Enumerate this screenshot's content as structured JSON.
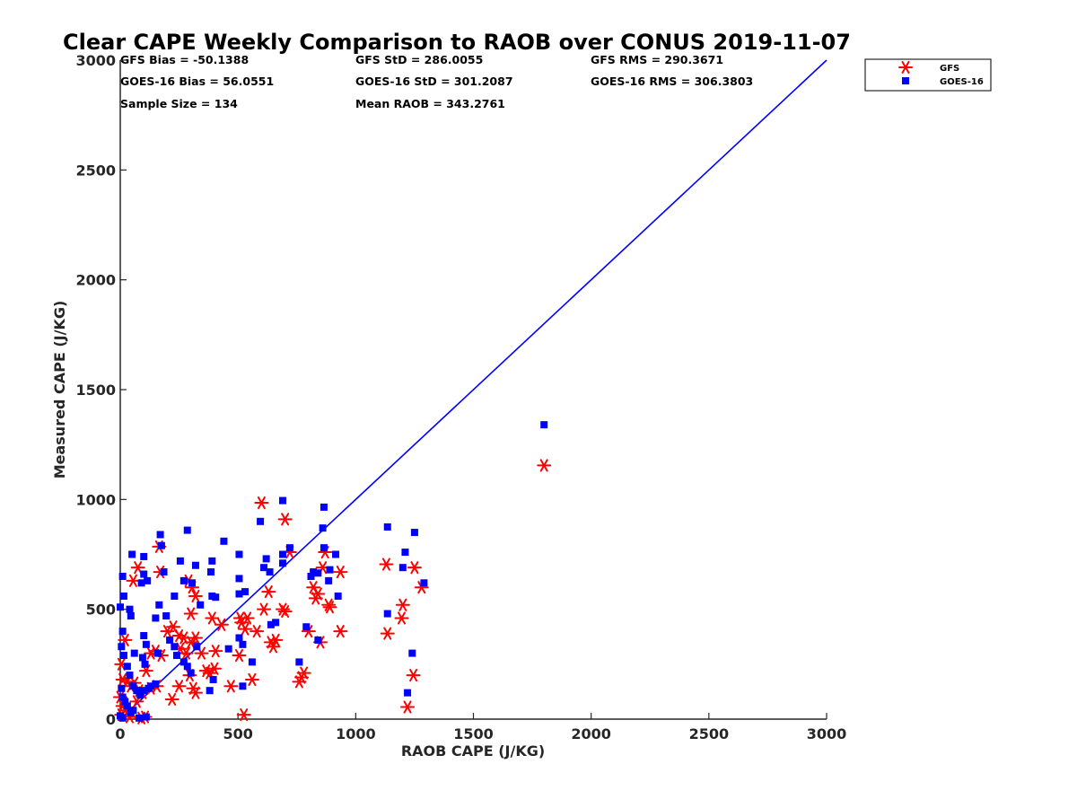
{
  "chart_data": {
    "type": "scatter",
    "title": "Clear CAPE Weekly Comparison to RAOB over CONUS 2019-11-07",
    "xlabel": "RAOB CAPE (J/KG)",
    "ylabel": "Measured CAPE (J/KG)",
    "xlim": [
      0,
      3000
    ],
    "ylim": [
      0,
      3000
    ],
    "xticks": [
      "0",
      "500",
      "1000",
      "1500",
      "2000",
      "2500",
      "3000"
    ],
    "yticks": [
      "0",
      "500",
      "1000",
      "1500",
      "2000",
      "2500",
      "3000"
    ],
    "grid": false,
    "legend_position": "top-right",
    "stats": [
      "GFS Bias = -50.1388",
      "GFS StD = 286.0055",
      "GFS RMS = 290.3671",
      "GOES-16 Bias = 56.0551",
      "GOES-16 StD = 301.2087",
      "GOES-16 RMS = 306.3803",
      "Sample Size = 134",
      "Mean RAOB = 343.2761"
    ],
    "reference_line": {
      "x": [
        0,
        3000
      ],
      "y": [
        0,
        3000
      ],
      "color": "#0000ff"
    },
    "series": [
      {
        "name": "GFS",
        "marker": "asterisk",
        "color": "#ff0000",
        "points": [
          [
            1800,
            1155
          ],
          [
            600,
            985
          ],
          [
            700,
            910
          ],
          [
            165,
            785
          ],
          [
            170,
            670
          ],
          [
            75,
            690
          ],
          [
            55,
            630
          ],
          [
            20,
            360
          ],
          [
            5,
            250
          ],
          [
            10,
            180
          ],
          [
            30,
            170
          ],
          [
            45,
            150
          ],
          [
            60,
            165
          ],
          [
            80,
            130
          ],
          [
            0,
            100
          ],
          [
            10,
            60
          ],
          [
            20,
            40
          ],
          [
            5,
            20
          ],
          [
            40,
            10
          ],
          [
            90,
            5
          ],
          [
            105,
            10
          ],
          [
            70,
            80
          ],
          [
            95,
            120
          ],
          [
            110,
            220
          ],
          [
            130,
            300
          ],
          [
            150,
            310
          ],
          [
            175,
            290
          ],
          [
            200,
            400
          ],
          [
            225,
            420
          ],
          [
            250,
            380
          ],
          [
            270,
            370
          ],
          [
            300,
            350
          ],
          [
            320,
            370
          ],
          [
            345,
            300
          ],
          [
            365,
            220
          ],
          [
            380,
            210
          ],
          [
            400,
            230
          ],
          [
            390,
            460
          ],
          [
            405,
            310
          ],
          [
            430,
            430
          ],
          [
            290,
            630
          ],
          [
            305,
            600
          ],
          [
            320,
            560
          ],
          [
            300,
            480
          ],
          [
            255,
            320
          ],
          [
            280,
            300
          ],
          [
            295,
            200
          ],
          [
            310,
            140
          ],
          [
            320,
            120
          ],
          [
            220,
            90
          ],
          [
            250,
            150
          ],
          [
            155,
            150
          ],
          [
            130,
            140
          ],
          [
            470,
            150
          ],
          [
            505,
            290
          ],
          [
            525,
            20
          ],
          [
            560,
            180
          ],
          [
            510,
            460
          ],
          [
            515,
            440
          ],
          [
            530,
            410
          ],
          [
            540,
            460
          ],
          [
            580,
            400
          ],
          [
            610,
            500
          ],
          [
            630,
            580
          ],
          [
            640,
            350
          ],
          [
            650,
            330
          ],
          [
            660,
            360
          ],
          [
            690,
            500
          ],
          [
            700,
            490
          ],
          [
            720,
            760
          ],
          [
            760,
            170
          ],
          [
            770,
            190
          ],
          [
            780,
            210
          ],
          [
            800,
            400
          ],
          [
            820,
            600
          ],
          [
            830,
            550
          ],
          [
            840,
            570
          ],
          [
            860,
            690
          ],
          [
            870,
            760
          ],
          [
            885,
            520
          ],
          [
            890,
            510
          ],
          [
            850,
            350
          ],
          [
            935,
            670
          ],
          [
            935,
            400
          ],
          [
            1130,
            705
          ],
          [
            1135,
            390
          ],
          [
            1195,
            460
          ],
          [
            1200,
            520
          ],
          [
            1250,
            690
          ],
          [
            1280,
            600
          ],
          [
            1245,
            200
          ],
          [
            1220,
            55
          ]
        ]
      },
      {
        "name": "GOES-16",
        "marker": "square",
        "color": "#0000ff",
        "points": [
          [
            1800,
            1340
          ],
          [
            690,
            995
          ],
          [
            865,
            965
          ],
          [
            595,
            900
          ],
          [
            860,
            870
          ],
          [
            1135,
            875
          ],
          [
            1250,
            850
          ],
          [
            170,
            840
          ],
          [
            285,
            860
          ],
          [
            440,
            810
          ],
          [
            175,
            790
          ],
          [
            50,
            750
          ],
          [
            100,
            740
          ],
          [
            505,
            750
          ],
          [
            690,
            750
          ],
          [
            720,
            780
          ],
          [
            865,
            780
          ],
          [
            915,
            750
          ],
          [
            1210,
            760
          ],
          [
            0,
            510
          ],
          [
            10,
            650
          ],
          [
            15,
            560
          ],
          [
            40,
            500
          ],
          [
            45,
            470
          ],
          [
            60,
            300
          ],
          [
            90,
            620
          ],
          [
            100,
            660
          ],
          [
            115,
            630
          ],
          [
            185,
            670
          ],
          [
            230,
            560
          ],
          [
            255,
            720
          ],
          [
            270,
            630
          ],
          [
            305,
            620
          ],
          [
            320,
            700
          ],
          [
            390,
            720
          ],
          [
            385,
            670
          ],
          [
            390,
            560
          ],
          [
            405,
            555
          ],
          [
            505,
            640
          ],
          [
            505,
            570
          ],
          [
            530,
            580
          ],
          [
            610,
            690
          ],
          [
            620,
            730
          ],
          [
            635,
            670
          ],
          [
            640,
            430
          ],
          [
            660,
            440
          ],
          [
            690,
            710
          ],
          [
            810,
            650
          ],
          [
            820,
            670
          ],
          [
            840,
            665
          ],
          [
            885,
            630
          ],
          [
            890,
            680
          ],
          [
            925,
            560
          ],
          [
            1200,
            690
          ],
          [
            1135,
            480
          ],
          [
            1290,
            620
          ],
          [
            10,
            400
          ],
          [
            5,
            330
          ],
          [
            15,
            290
          ],
          [
            30,
            240
          ],
          [
            40,
            200
          ],
          [
            55,
            150
          ],
          [
            70,
            130
          ],
          [
            85,
            110
          ],
          [
            100,
            380
          ],
          [
            110,
            340
          ],
          [
            95,
            280
          ],
          [
            105,
            250
          ],
          [
            130,
            150
          ],
          [
            150,
            460
          ],
          [
            165,
            520
          ],
          [
            195,
            470
          ],
          [
            210,
            360
          ],
          [
            230,
            330
          ],
          [
            240,
            290
          ],
          [
            270,
            260
          ],
          [
            285,
            240
          ],
          [
            300,
            210
          ],
          [
            325,
            330
          ],
          [
            340,
            520
          ],
          [
            380,
            130
          ],
          [
            395,
            180
          ],
          [
            460,
            320
          ],
          [
            505,
            370
          ],
          [
            520,
            340
          ],
          [
            520,
            150
          ],
          [
            560,
            260
          ],
          [
            760,
            260
          ],
          [
            790,
            420
          ],
          [
            840,
            360
          ],
          [
            1240,
            300
          ],
          [
            1220,
            120
          ],
          [
            5,
            140
          ],
          [
            10,
            100
          ],
          [
            20,
            80
          ],
          [
            30,
            60
          ],
          [
            45,
            30
          ],
          [
            55,
            40
          ],
          [
            0,
            15
          ],
          [
            10,
            5
          ],
          [
            80,
            5
          ],
          [
            110,
            10
          ],
          [
            100,
            130
          ],
          [
            120,
            140
          ],
          [
            150,
            160
          ],
          [
            160,
            300
          ]
        ]
      }
    ]
  }
}
